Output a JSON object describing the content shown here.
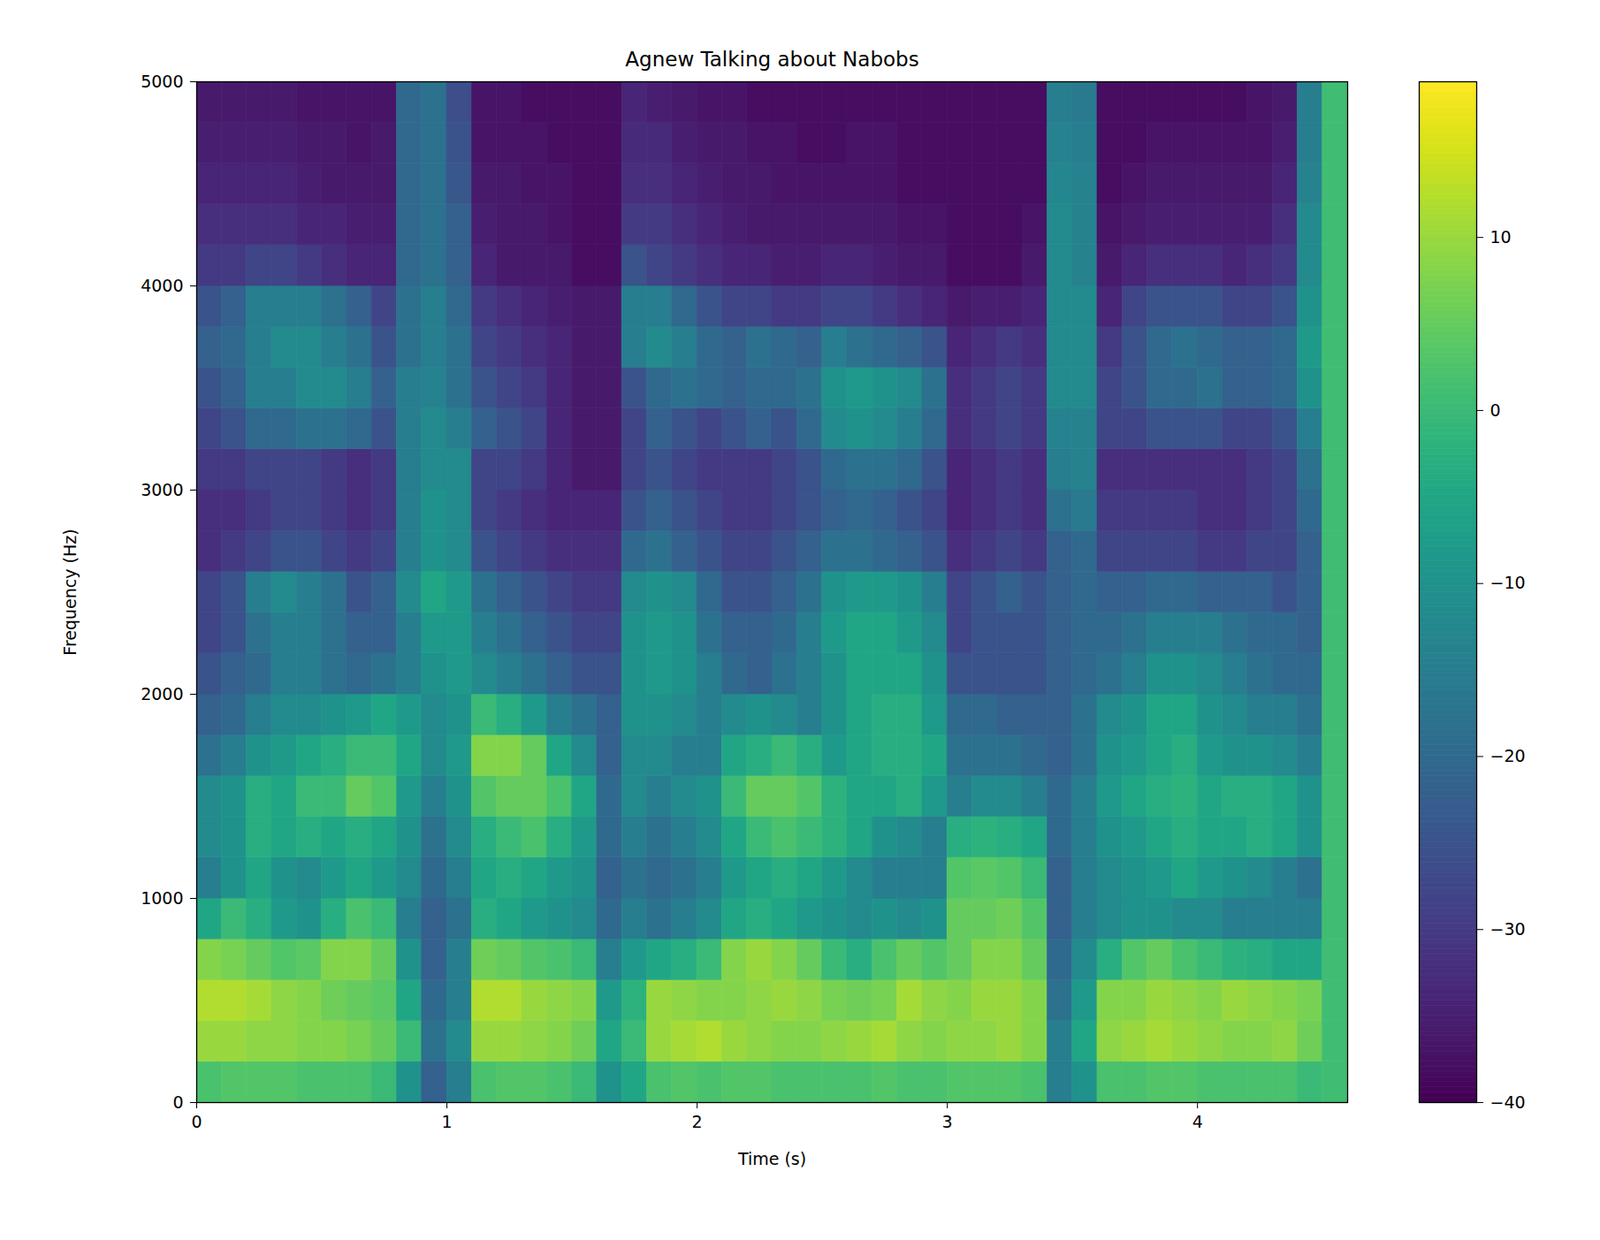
{
  "chart_data": {
    "type": "heatmap",
    "title": "Agnew Talking about Nabobs",
    "x_label": "Time (s)",
    "y_label": "Frequency (Hz)",
    "xlim": [
      0,
      4.6
    ],
    "xticks": [
      0,
      1,
      2,
      3,
      4
    ],
    "ylim": [
      0,
      5000
    ],
    "yticks": [
      0,
      1000,
      2000,
      3000,
      4000,
      5000
    ],
    "color": "viridis",
    "x_bins": [
      0,
      0.1,
      0.2,
      0.3,
      0.4,
      0.5,
      0.6,
      0.7,
      0.8,
      0.9,
      1.0,
      1.1,
      1.2,
      1.3,
      1.4,
      1.5,
      1.6,
      1.7,
      1.8,
      1.9,
      2.0,
      2.1,
      2.2,
      2.3,
      2.4,
      2.5,
      2.6,
      2.7,
      2.8,
      2.9,
      3.0,
      3.1,
      3.2,
      3.3,
      3.4,
      3.5,
      3.6,
      3.7,
      3.8,
      3.9,
      4.0,
      4.1,
      4.2,
      4.3,
      4.4,
      4.5,
      4.6
    ],
    "y_bins": [
      0,
      200,
      400,
      600,
      800,
      1000,
      1200,
      1400,
      1600,
      1800,
      2000,
      2200,
      2400,
      2600,
      2800,
      3000,
      3200,
      3400,
      3600,
      3800,
      4000,
      4200,
      4400,
      4600,
      4800,
      5000
    ],
    "cells": [
      [
        2,
        3,
        3,
        3,
        2,
        2,
        2,
        0,
        -10,
        -22,
        -15,
        2,
        3,
        3,
        2,
        0,
        -10,
        -5,
        2,
        3,
        2,
        3,
        3,
        2,
        2,
        2,
        2,
        3,
        2,
        2,
        3,
        3,
        3,
        2,
        -15,
        -10,
        2,
        2,
        3,
        3,
        2,
        2,
        2,
        2,
        0,
        1
      ],
      [
        10,
        10,
        9,
        9,
        8,
        8,
        7,
        5,
        0,
        -18,
        -12,
        10,
        10,
        9,
        8,
        6,
        -5,
        0,
        10,
        11,
        12,
        10,
        9,
        8,
        8,
        9,
        10,
        11,
        9,
        8,
        9,
        9,
        10,
        8,
        -15,
        -5,
        9,
        10,
        11,
        10,
        9,
        8,
        8,
        9,
        6,
        1
      ],
      [
        12,
        12,
        11,
        9,
        8,
        6,
        5,
        4,
        -5,
        -20,
        -15,
        12,
        12,
        10,
        9,
        8,
        -8,
        -2,
        10,
        9,
        8,
        8,
        9,
        10,
        9,
        7,
        6,
        7,
        11,
        9,
        8,
        10,
        10,
        8,
        -18,
        -8,
        8,
        8,
        10,
        9,
        8,
        10,
        9,
        8,
        7,
        1
      ],
      [
        8,
        7,
        5,
        3,
        4,
        8,
        8,
        5,
        -10,
        -22,
        -15,
        6,
        5,
        3,
        2,
        0,
        -15,
        -8,
        -5,
        -3,
        0,
        8,
        10,
        8,
        5,
        0,
        -3,
        2,
        5,
        3,
        5,
        8,
        8,
        5,
        -20,
        -12,
        -3,
        3,
        5,
        2,
        0,
        -2,
        -3,
        -5,
        -5,
        1
      ],
      [
        -5,
        0,
        -3,
        -8,
        -10,
        -3,
        2,
        0,
        -15,
        -22,
        -18,
        -3,
        -5,
        -8,
        -10,
        -12,
        -20,
        -15,
        -18,
        -15,
        -12,
        -5,
        -3,
        -5,
        -8,
        -10,
        -12,
        -10,
        -12,
        -10,
        5,
        5,
        6,
        3,
        -22,
        -15,
        -12,
        -10,
        -10,
        -12,
        -12,
        -15,
        -15,
        -15,
        -15,
        1
      ],
      [
        -15,
        -10,
        -5,
        -10,
        -12,
        -8,
        -5,
        -8,
        -12,
        -20,
        -15,
        -5,
        -3,
        -5,
        -8,
        -10,
        -22,
        -18,
        -20,
        -18,
        -15,
        -8,
        -5,
        -3,
        -5,
        -8,
        -12,
        -15,
        -15,
        -15,
        3,
        4,
        3,
        0,
        -22,
        -15,
        -12,
        -10,
        -8,
        -5,
        -8,
        -10,
        -12,
        -15,
        -18,
        1
      ],
      [
        -12,
        -10,
        -3,
        -5,
        -3,
        -5,
        -3,
        -5,
        -10,
        -18,
        -12,
        -3,
        0,
        2,
        -3,
        -8,
        -20,
        -15,
        -18,
        -15,
        -12,
        -5,
        0,
        2,
        0,
        -2,
        -5,
        -10,
        -12,
        -15,
        -3,
        -2,
        -3,
        -5,
        -20,
        -15,
        -10,
        -8,
        -5,
        -3,
        -5,
        -5,
        -3,
        -5,
        -10,
        1
      ],
      [
        -12,
        -10,
        -3,
        -5,
        0,
        0,
        5,
        3,
        -8,
        -15,
        -10,
        3,
        5,
        5,
        2,
        -5,
        -20,
        -12,
        -15,
        -12,
        -10,
        0,
        5,
        5,
        3,
        -2,
        -5,
        -5,
        -3,
        -8,
        -15,
        -12,
        -12,
        -15,
        -20,
        -15,
        -8,
        -5,
        -3,
        -2,
        -5,
        -3,
        -3,
        -5,
        -10,
        1
      ],
      [
        -18,
        -15,
        -10,
        -8,
        -5,
        -3,
        0,
        0,
        -5,
        -12,
        -8,
        8,
        8,
        5,
        -5,
        -12,
        -22,
        -12,
        -12,
        -15,
        -15,
        -5,
        -3,
        0,
        -3,
        -8,
        -5,
        -3,
        -3,
        -5,
        -18,
        -18,
        -18,
        -20,
        -22,
        -18,
        -10,
        -8,
        -5,
        -3,
        -8,
        -10,
        -10,
        -12,
        -15,
        1
      ],
      [
        -22,
        -20,
        -15,
        -12,
        -12,
        -10,
        -8,
        -5,
        -8,
        -12,
        -10,
        0,
        -3,
        -8,
        -15,
        -18,
        -22,
        -10,
        -10,
        -12,
        -15,
        -12,
        -10,
        -12,
        -15,
        -10,
        -5,
        -3,
        -3,
        -8,
        -20,
        -20,
        -22,
        -22,
        -22,
        -18,
        -12,
        -10,
        -5,
        -5,
        -10,
        -12,
        -15,
        -15,
        -18,
        1
      ],
      [
        -25,
        -22,
        -20,
        -15,
        -15,
        -18,
        -20,
        -18,
        -15,
        -10,
        -8,
        -12,
        -15,
        -18,
        -22,
        -25,
        -25,
        -10,
        -8,
        -10,
        -15,
        -20,
        -22,
        -18,
        -15,
        -10,
        -5,
        -5,
        -5,
        -10,
        -25,
        -25,
        -25,
        -25,
        -22,
        -20,
        -18,
        -15,
        -10,
        -10,
        -12,
        -15,
        -18,
        -20,
        -20,
        1
      ],
      [
        -28,
        -25,
        -18,
        -15,
        -15,
        -18,
        -22,
        -22,
        -15,
        -8,
        -8,
        -15,
        -18,
        -22,
        -25,
        -28,
        -28,
        -10,
        -8,
        -10,
        -18,
        -22,
        -22,
        -20,
        -15,
        -8,
        -5,
        -5,
        -8,
        -12,
        -28,
        -25,
        -25,
        -25,
        -22,
        -20,
        -20,
        -18,
        -15,
        -15,
        -15,
        -18,
        -20,
        -20,
        -22,
        1
      ],
      [
        -28,
        -25,
        -15,
        -12,
        -15,
        -18,
        -25,
        -22,
        -12,
        -5,
        -8,
        -18,
        -22,
        -25,
        -28,
        -30,
        -30,
        -12,
        -10,
        -12,
        -20,
        -25,
        -25,
        -22,
        -18,
        -10,
        -8,
        -8,
        -10,
        -15,
        -28,
        -25,
        -22,
        -25,
        -22,
        -20,
        -22,
        -22,
        -20,
        -20,
        -22,
        -22,
        -22,
        -25,
        -22,
        1
      ],
      [
        -32,
        -30,
        -28,
        -25,
        -25,
        -28,
        -30,
        -28,
        -15,
        -10,
        -12,
        -25,
        -28,
        -30,
        -32,
        -32,
        -32,
        -20,
        -18,
        -22,
        -25,
        -28,
        -28,
        -25,
        -22,
        -18,
        -18,
        -20,
        -22,
        -25,
        -32,
        -30,
        -28,
        -30,
        -22,
        -20,
        -28,
        -28,
        -28,
        -28,
        -30,
        -30,
        -28,
        -28,
        -22,
        1
      ],
      [
        -32,
        -32,
        -30,
        -28,
        -28,
        -30,
        -32,
        -30,
        -15,
        -10,
        -12,
        -28,
        -30,
        -32,
        -34,
        -34,
        -34,
        -25,
        -22,
        -25,
        -28,
        -30,
        -30,
        -28,
        -25,
        -22,
        -20,
        -22,
        -25,
        -28,
        -34,
        -32,
        -30,
        -32,
        -18,
        -16,
        -30,
        -30,
        -30,
        -30,
        -32,
        -32,
        -30,
        -28,
        -20,
        1
      ],
      [
        -30,
        -30,
        -28,
        -28,
        -28,
        -30,
        -32,
        -30,
        -15,
        -12,
        -12,
        -28,
        -28,
        -30,
        -34,
        -36,
        -36,
        -28,
        -25,
        -28,
        -30,
        -30,
        -30,
        -28,
        -25,
        -20,
        -18,
        -18,
        -20,
        -25,
        -34,
        -32,
        -30,
        -32,
        -15,
        -14,
        -32,
        -32,
        -32,
        -32,
        -32,
        -32,
        -30,
        -28,
        -18,
        1
      ],
      [
        -28,
        -25,
        -20,
        -20,
        -18,
        -18,
        -20,
        -25,
        -15,
        -12,
        -15,
        -22,
        -25,
        -28,
        -34,
        -36,
        -36,
        -28,
        -22,
        -25,
        -28,
        -25,
        -22,
        -25,
        -20,
        -12,
        -10,
        -12,
        -15,
        -20,
        -32,
        -30,
        -28,
        -30,
        -14,
        -14,
        -28,
        -28,
        -25,
        -25,
        -25,
        -28,
        -28,
        -25,
        -15,
        1
      ],
      [
        -25,
        -22,
        -15,
        -15,
        -12,
        -12,
        -15,
        -22,
        -15,
        -14,
        -18,
        -25,
        -28,
        -30,
        -34,
        -36,
        -36,
        -25,
        -20,
        -18,
        -20,
        -22,
        -20,
        -20,
        -18,
        -10,
        -8,
        -10,
        -12,
        -18,
        -32,
        -30,
        -28,
        -30,
        -12,
        -12,
        -28,
        -25,
        -20,
        -20,
        -18,
        -22,
        -22,
        -20,
        -10,
        1
      ],
      [
        -22,
        -20,
        -15,
        -12,
        -12,
        -15,
        -18,
        -25,
        -18,
        -15,
        -18,
        -28,
        -30,
        -32,
        -34,
        -36,
        -36,
        -15,
        -12,
        -15,
        -20,
        -22,
        -18,
        -20,
        -22,
        -15,
        -18,
        -20,
        -22,
        -25,
        -34,
        -32,
        -30,
        -32,
        -12,
        -12,
        -30,
        -25,
        -20,
        -18,
        -20,
        -22,
        -22,
        -20,
        -8,
        1
      ],
      [
        -25,
        -22,
        -15,
        -15,
        -15,
        -18,
        -22,
        -28,
        -18,
        -15,
        -20,
        -30,
        -32,
        -34,
        -35,
        -36,
        -36,
        -15,
        -15,
        -20,
        -25,
        -28,
        -28,
        -30,
        -30,
        -28,
        -28,
        -30,
        -32,
        -34,
        -36,
        -35,
        -35,
        -34,
        -12,
        -12,
        -34,
        -28,
        -25,
        -25,
        -25,
        -28,
        -28,
        -25,
        -10,
        1
      ],
      [
        -30,
        -30,
        -28,
        -28,
        -30,
        -32,
        -34,
        -34,
        -20,
        -18,
        -22,
        -34,
        -36,
        -36,
        -36,
        -38,
        -38,
        -25,
        -28,
        -30,
        -32,
        -34,
        -34,
        -35,
        -35,
        -34,
        -34,
        -35,
        -36,
        -36,
        -38,
        -38,
        -38,
        -36,
        -12,
        -14,
        -36,
        -34,
        -32,
        -32,
        -32,
        -34,
        -32,
        -30,
        -12,
        1
      ],
      [
        -32,
        -32,
        -32,
        -32,
        -34,
        -34,
        -35,
        -35,
        -20,
        -18,
        -22,
        -35,
        -36,
        -36,
        -37,
        -38,
        -38,
        -30,
        -30,
        -32,
        -34,
        -35,
        -36,
        -36,
        -36,
        -36,
        -36,
        -36,
        -37,
        -37,
        -38,
        -38,
        -38,
        -37,
        -12,
        -14,
        -37,
        -36,
        -35,
        -35,
        -35,
        -35,
        -35,
        -32,
        -12,
        1
      ],
      [
        -34,
        -34,
        -34,
        -34,
        -35,
        -36,
        -36,
        -36,
        -20,
        -18,
        -24,
        -36,
        -36,
        -37,
        -37,
        -38,
        -38,
        -32,
        -32,
        -34,
        -35,
        -36,
        -36,
        -37,
        -37,
        -37,
        -37,
        -37,
        -38,
        -38,
        -38,
        -38,
        -38,
        -38,
        -13,
        -14,
        -38,
        -37,
        -36,
        -36,
        -36,
        -36,
        -36,
        -34,
        -14,
        1
      ],
      [
        -35,
        -35,
        -35,
        -35,
        -36,
        -36,
        -37,
        -36,
        -20,
        -18,
        -25,
        -37,
        -37,
        -37,
        -38,
        -38,
        -38,
        -33,
        -33,
        -35,
        -36,
        -36,
        -37,
        -37,
        -38,
        -38,
        -37,
        -37,
        -38,
        -38,
        -38,
        -38,
        -38,
        -38,
        -14,
        -15,
        -38,
        -38,
        -37,
        -37,
        -37,
        -37,
        -37,
        -35,
        -15,
        1
      ],
      [
        -36,
        -36,
        -36,
        -36,
        -37,
        -37,
        -37,
        -37,
        -20,
        -18,
        -26,
        -37,
        -37,
        -38,
        -38,
        -38,
        -38,
        -34,
        -35,
        -36,
        -37,
        -37,
        -38,
        -38,
        -38,
        -38,
        -38,
        -38,
        -38,
        -38,
        -38,
        -38,
        -38,
        -38,
        -15,
        -16,
        -38,
        -38,
        -38,
        -38,
        -38,
        -38,
        -37,
        -36,
        -15,
        1
      ]
    ],
    "colorbar_range": [
      -40,
      19
    ],
    "colorbar_ticks": [
      {
        "value": -40,
        "label": "−40"
      },
      {
        "value": -30,
        "label": "−30"
      },
      {
        "value": -20,
        "label": "−20"
      },
      {
        "value": -10,
        "label": "−10"
      },
      {
        "value": 0,
        "label": "0"
      },
      {
        "value": 10,
        "label": "10"
      }
    ]
  }
}
